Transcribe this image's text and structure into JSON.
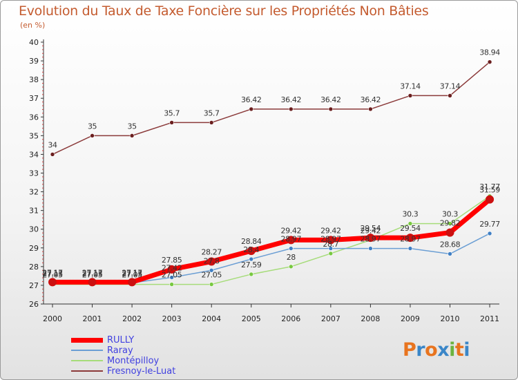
{
  "title": "Evolution du Taux de Taxe Foncière sur les Propriétés Non Bâties",
  "subtitle": "(en %)",
  "brand": {
    "name": "Proxiti",
    "colors": [
      "#e8741f",
      "#3a86c8",
      "#e8741f",
      "#3a86c8",
      "#6cb33f",
      "#e8741f",
      "#3a86c8"
    ]
  },
  "chart_data": {
    "type": "line",
    "title": "Evolution du Taux de Taxe Foncière sur les Propriétés Non Bâties",
    "ylabel": "(en %)",
    "xlabel": "",
    "ylim": [
      26,
      40
    ],
    "yticks": [
      "26",
      "27",
      "28",
      "29",
      "30",
      "31",
      "32",
      "33",
      "34",
      "35",
      "36",
      "37",
      "38",
      "39",
      "40"
    ],
    "categories": [
      "2000",
      "2001",
      "2002",
      "2003",
      "2004",
      "2005",
      "2006",
      "2007",
      "2008",
      "2009",
      "2010",
      "2011"
    ],
    "grid": false,
    "series": [
      {
        "name": "RULLY",
        "color": "#ff0000",
        "marker": "#cc1010",
        "width": 7,
        "values": [
          27.17,
          27.17,
          27.17,
          27.85,
          28.27,
          28.84,
          29.42,
          29.42,
          29.54,
          29.54,
          29.82,
          31.59
        ],
        "labels": [
          "27.17",
          "27.17",
          "27.17",
          "27.85",
          "28.27",
          "28.84",
          "29.42",
          "29.42",
          "29.54",
          "29.54",
          "29.82",
          "31.59"
        ]
      },
      {
        "name": "Raray",
        "color": "#6a9ed4",
        "marker": "#3f7fc4",
        "width": 1.5,
        "values": [
          27.13,
          27.13,
          27.13,
          27.42,
          27.8,
          28.4,
          28.97,
          28.97,
          28.97,
          28.97,
          28.68,
          29.77
        ],
        "labels": [
          "27.13",
          "27.13",
          "27.13",
          "27.42",
          "27.8",
          "28.4",
          "28.97",
          "28.97",
          "28.97",
          "28.97",
          "28.68",
          "29.77"
        ]
      },
      {
        "name": "Montépilloy",
        "color": "#a6dc7a",
        "marker": "#78c840",
        "width": 1.5,
        "values": [
          27.05,
          27.05,
          27.05,
          27.05,
          27.05,
          27.59,
          28,
          28.7,
          29.42,
          30.3,
          30.3,
          31.77
        ],
        "labels": [
          "27.05",
          "27.05",
          "27.05",
          "27.05",
          "27.05",
          "27.59",
          "28",
          "28.7",
          "29.42",
          "30.3",
          "30.3",
          "31.77"
        ]
      },
      {
        "name": "Fresnoy-le-Luat",
        "color": "#8b3a3a",
        "marker": "#6b1f1f",
        "width": 1.5,
        "values": [
          34,
          35,
          35,
          35.7,
          35.7,
          36.42,
          36.42,
          36.42,
          36.42,
          37.14,
          37.14,
          38.94
        ],
        "labels": [
          "34",
          "35",
          "35",
          "35.7",
          "35.7",
          "36.42",
          "36.42",
          "36.42",
          "36.42",
          "37.14",
          "37.14",
          "38.94"
        ]
      }
    ],
    "legend_position": "bottom-left"
  }
}
